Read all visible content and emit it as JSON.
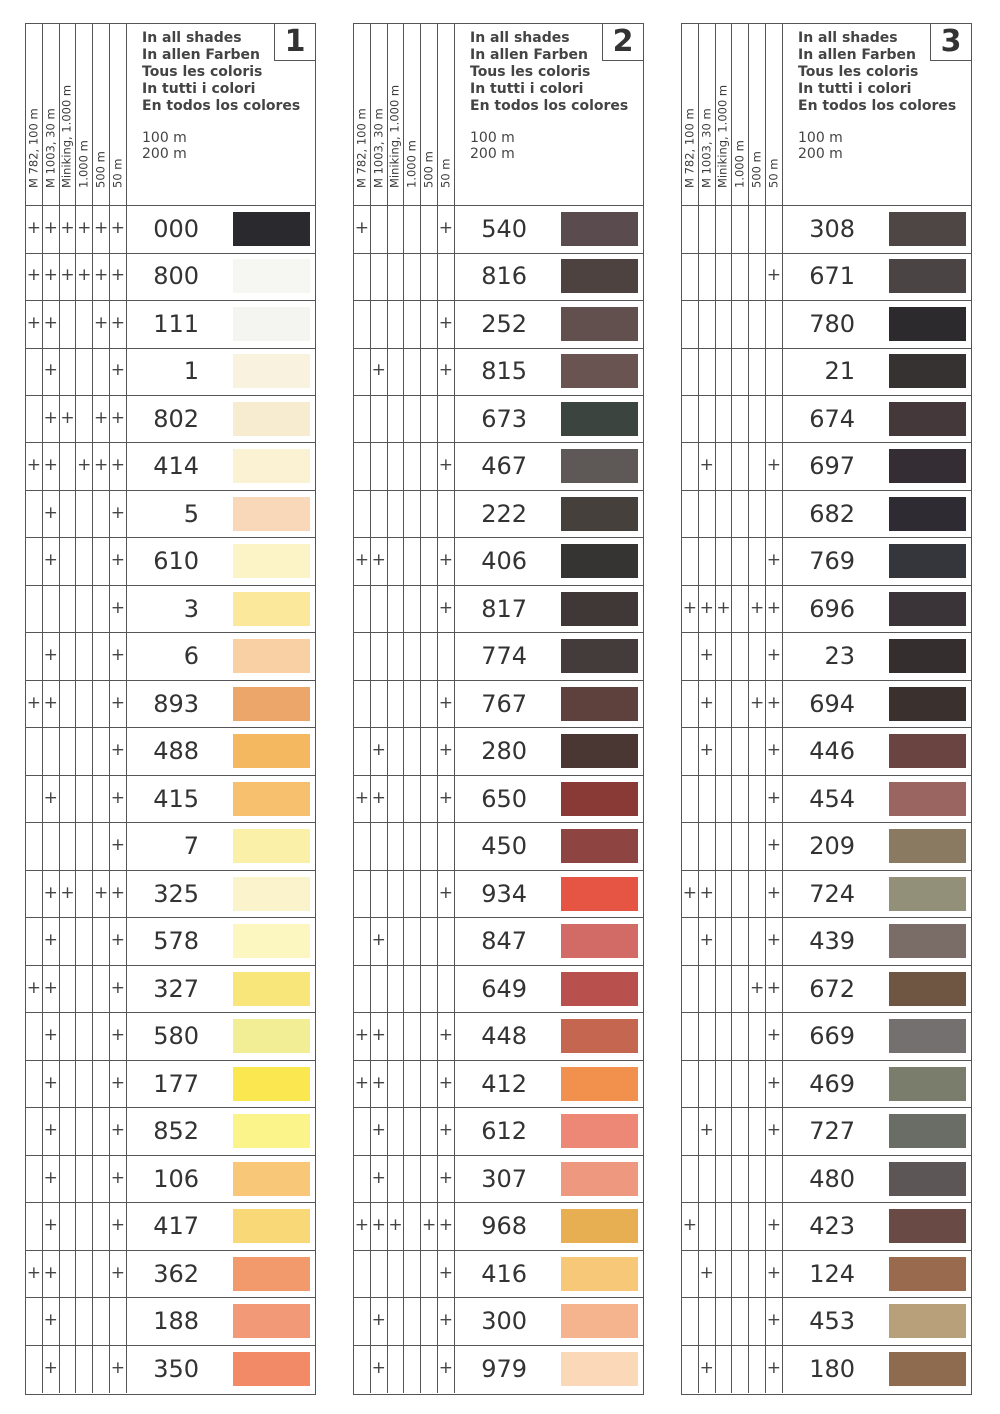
{
  "column_headers": [
    "M 782, 100 m",
    "M 1003, 30 m",
    "Miniking, 1.000 m",
    "1.000 m",
    "500 m",
    "50 m"
  ],
  "languages": [
    "In all shades",
    "In allen Farben",
    "Tous les coloris",
    "In tutti i colori",
    "En todos los colores"
  ],
  "lengths": [
    "100 m",
    "200 m"
  ],
  "panels": [
    {
      "number": "1",
      "rows": [
        {
          "code": "000",
          "avail": "111111",
          "color": "#2a2a2e"
        },
        {
          "code": "800",
          "avail": "111111",
          "color": "#f6f6f2"
        },
        {
          "code": "111",
          "avail": "110011",
          "color": "#f4f4f0"
        },
        {
          "code": "1",
          "avail": "010001",
          "color": "#f8f2df"
        },
        {
          "code": "802",
          "avail": "011011",
          "color": "#f8ecd0"
        },
        {
          "code": "414",
          "avail": "110111",
          "color": "#fbf2d4"
        },
        {
          "code": "5",
          "avail": "010001",
          "color": "#f8d8b8"
        },
        {
          "code": "610",
          "avail": "010001",
          "color": "#fcf4c6"
        },
        {
          "code": "3",
          "avail": "000001",
          "color": "#fbe89a"
        },
        {
          "code": "6",
          "avail": "010001",
          "color": "#f9cfa4"
        },
        {
          "code": "893",
          "avail": "110001",
          "color": "#eda66a"
        },
        {
          "code": "488",
          "avail": "000001",
          "color": "#f4b860"
        },
        {
          "code": "415",
          "avail": "010001",
          "color": "#f6c06e"
        },
        {
          "code": "7",
          "avail": "000001",
          "color": "#fbf0a8"
        },
        {
          "code": "325",
          "avail": "011011",
          "color": "#fbf3cc"
        },
        {
          "code": "578",
          "avail": "010001",
          "color": "#fcf6c0"
        },
        {
          "code": "327",
          "avail": "110001",
          "color": "#f9e67a"
        },
        {
          "code": "580",
          "avail": "010001",
          "color": "#f2ee96"
        },
        {
          "code": "177",
          "avail": "010001",
          "color": "#fbe850"
        },
        {
          "code": "852",
          "avail": "010001",
          "color": "#fbf48a"
        },
        {
          "code": "106",
          "avail": "010001",
          "color": "#f8c878"
        },
        {
          "code": "417",
          "avail": "010001",
          "color": "#f9d878"
        },
        {
          "code": "362",
          "avail": "110001",
          "color": "#f29a6c"
        },
        {
          "code": "188",
          "avail": "010000",
          "color": "#f29a78"
        },
        {
          "code": "350",
          "avail": "010001",
          "color": "#f28a68"
        }
      ]
    },
    {
      "number": "2",
      "rows": [
        {
          "code": "540",
          "avail": "100001",
          "color": "#5a4c4e"
        },
        {
          "code": "816",
          "avail": "000000",
          "color": "#4e4240"
        },
        {
          "code": "252",
          "avail": "000001",
          "color": "#62504e"
        },
        {
          "code": "815",
          "avail": "010001",
          "color": "#6a5452"
        },
        {
          "code": "673",
          "avail": "000000",
          "color": "#3c4440"
        },
        {
          "code": "467",
          "avail": "000001",
          "color": "#5e5856"
        },
        {
          "code": "222",
          "avail": "000000",
          "color": "#45403c"
        },
        {
          "code": "406",
          "avail": "110001",
          "color": "#353432"
        },
        {
          "code": "817",
          "avail": "000001",
          "color": "#403836"
        },
        {
          "code": "774",
          "avail": "000000",
          "color": "#433c3a"
        },
        {
          "code": "767",
          "avail": "000001",
          "color": "#5e403c"
        },
        {
          "code": "280",
          "avail": "010001",
          "color": "#4a3632"
        },
        {
          "code": "650",
          "avail": "110001",
          "color": "#8a3a36"
        },
        {
          "code": "450",
          "avail": "000000",
          "color": "#8e4440"
        },
        {
          "code": "934",
          "avail": "000001",
          "color": "#e65444"
        },
        {
          "code": "847",
          "avail": "010000",
          "color": "#d26a66"
        },
        {
          "code": "649",
          "avail": "000000",
          "color": "#b8504e"
        },
        {
          "code": "448",
          "avail": "110001",
          "color": "#c46650"
        },
        {
          "code": "412",
          "avail": "110001",
          "color": "#f2904e"
        },
        {
          "code": "612",
          "avail": "010001",
          "color": "#ee8876"
        },
        {
          "code": "307",
          "avail": "010001",
          "color": "#ee9880"
        },
        {
          "code": "968",
          "avail": "111011",
          "color": "#e8ae52"
        },
        {
          "code": "416",
          "avail": "000001",
          "color": "#f6c878"
        },
        {
          "code": "300",
          "avail": "010001",
          "color": "#f6b48e"
        },
        {
          "code": "979",
          "avail": "010001",
          "color": "#fad8b8"
        }
      ]
    },
    {
      "number": "3",
      "rows": [
        {
          "code": "308",
          "avail": "000000",
          "color": "#4e4644"
        },
        {
          "code": "671",
          "avail": "000001",
          "color": "#4a4444"
        },
        {
          "code": "780",
          "avail": "000000",
          "color": "#2c2a2c"
        },
        {
          "code": "21",
          "avail": "000000",
          "color": "#363232"
        },
        {
          "code": "674",
          "avail": "000000",
          "color": "#44383a"
        },
        {
          "code": "697",
          "avail": "010001",
          "color": "#342e34"
        },
        {
          "code": "682",
          "avail": "000000",
          "color": "#2e2c32"
        },
        {
          "code": "769",
          "avail": "000001",
          "color": "#35363c"
        },
        {
          "code": "696",
          "avail": "111011",
          "color": "#3a3438"
        },
        {
          "code": "23",
          "avail": "010001",
          "color": "#352e2e"
        },
        {
          "code": "694",
          "avail": "010011",
          "color": "#3a302e"
        },
        {
          "code": "446",
          "avail": "010001",
          "color": "#6a4440"
        },
        {
          "code": "454",
          "avail": "000001",
          "color": "#9a6460"
        },
        {
          "code": "209",
          "avail": "000001",
          "color": "#8a7a62"
        },
        {
          "code": "724",
          "avail": "110001",
          "color": "#929078"
        },
        {
          "code": "439",
          "avail": "010001",
          "color": "#7a6c66"
        },
        {
          "code": "672",
          "avail": "000011",
          "color": "#6e5642"
        },
        {
          "code": "669",
          "avail": "000001",
          "color": "#747070"
        },
        {
          "code": "469",
          "avail": "000001",
          "color": "#7a7c6c"
        },
        {
          "code": "727",
          "avail": "010001",
          "color": "#6a6c66"
        },
        {
          "code": "480",
          "avail": "000000",
          "color": "#5c5656"
        },
        {
          "code": "423",
          "avail": "100001",
          "color": "#6a4a44"
        },
        {
          "code": "124",
          "avail": "010001",
          "color": "#9a6a4e"
        },
        {
          "code": "453",
          "avail": "000001",
          "color": "#b8a07a"
        },
        {
          "code": "180",
          "avail": "010001",
          "color": "#8e6a4e"
        }
      ]
    }
  ],
  "mark": "+"
}
